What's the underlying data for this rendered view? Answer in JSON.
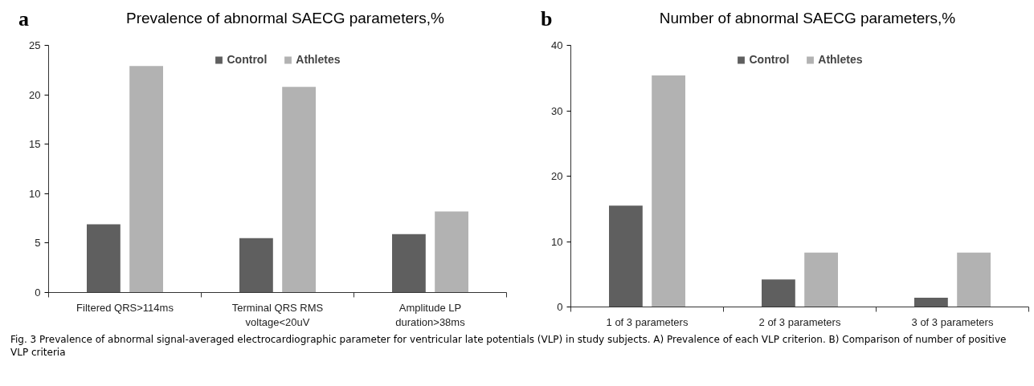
{
  "chart_data": [
    {
      "type": "bar",
      "title": "Prevalence of abnormal SAECG parameters,%",
      "annotations": [
        "a"
      ],
      "categories": [
        "Filtered QRS>114ms",
        "Terminal QRS RMS voltage<20uV",
        "Amplitude LP duration>38ms"
      ],
      "series": [
        {
          "name": "Control",
          "color": "#5f5f5f",
          "values": [
            6.9,
            5.5,
            5.9
          ]
        },
        {
          "name": "Athletes",
          "color": "#b2b2b2",
          "values": [
            22.9,
            20.8,
            8.2
          ]
        }
      ],
      "ylim": [
        0,
        25
      ],
      "yticks": [
        0,
        5,
        10,
        15,
        20,
        25
      ],
      "grid": false,
      "legend": "top"
    },
    {
      "type": "bar",
      "title": "Number of abnormal SAECG parameters,%",
      "annotations": [
        "b",
        "Fig. 3  Prevalence of abnormal signal-averaged electrocardiographic parameter for ventricular late potentials (VLP) in study subjects. A) Prevalence of each VLP criterion. B) Comparison of number of positive VLP criteria"
      ],
      "categories": [
        "1 of 3 parameters",
        "2 of 3 parameters",
        "3 of 3 parameters"
      ],
      "series": [
        {
          "name": "Control",
          "color": "#5f5f5f",
          "values": [
            15.5,
            4.2,
            1.4
          ]
        },
        {
          "name": "Athletes",
          "color": "#b2b2b2",
          "values": [
            35.4,
            8.3,
            8.3
          ]
        }
      ],
      "ylim": [
        0,
        40
      ],
      "yticks": [
        0,
        10,
        20,
        30,
        40
      ],
      "grid": false,
      "legend": "top"
    }
  ]
}
